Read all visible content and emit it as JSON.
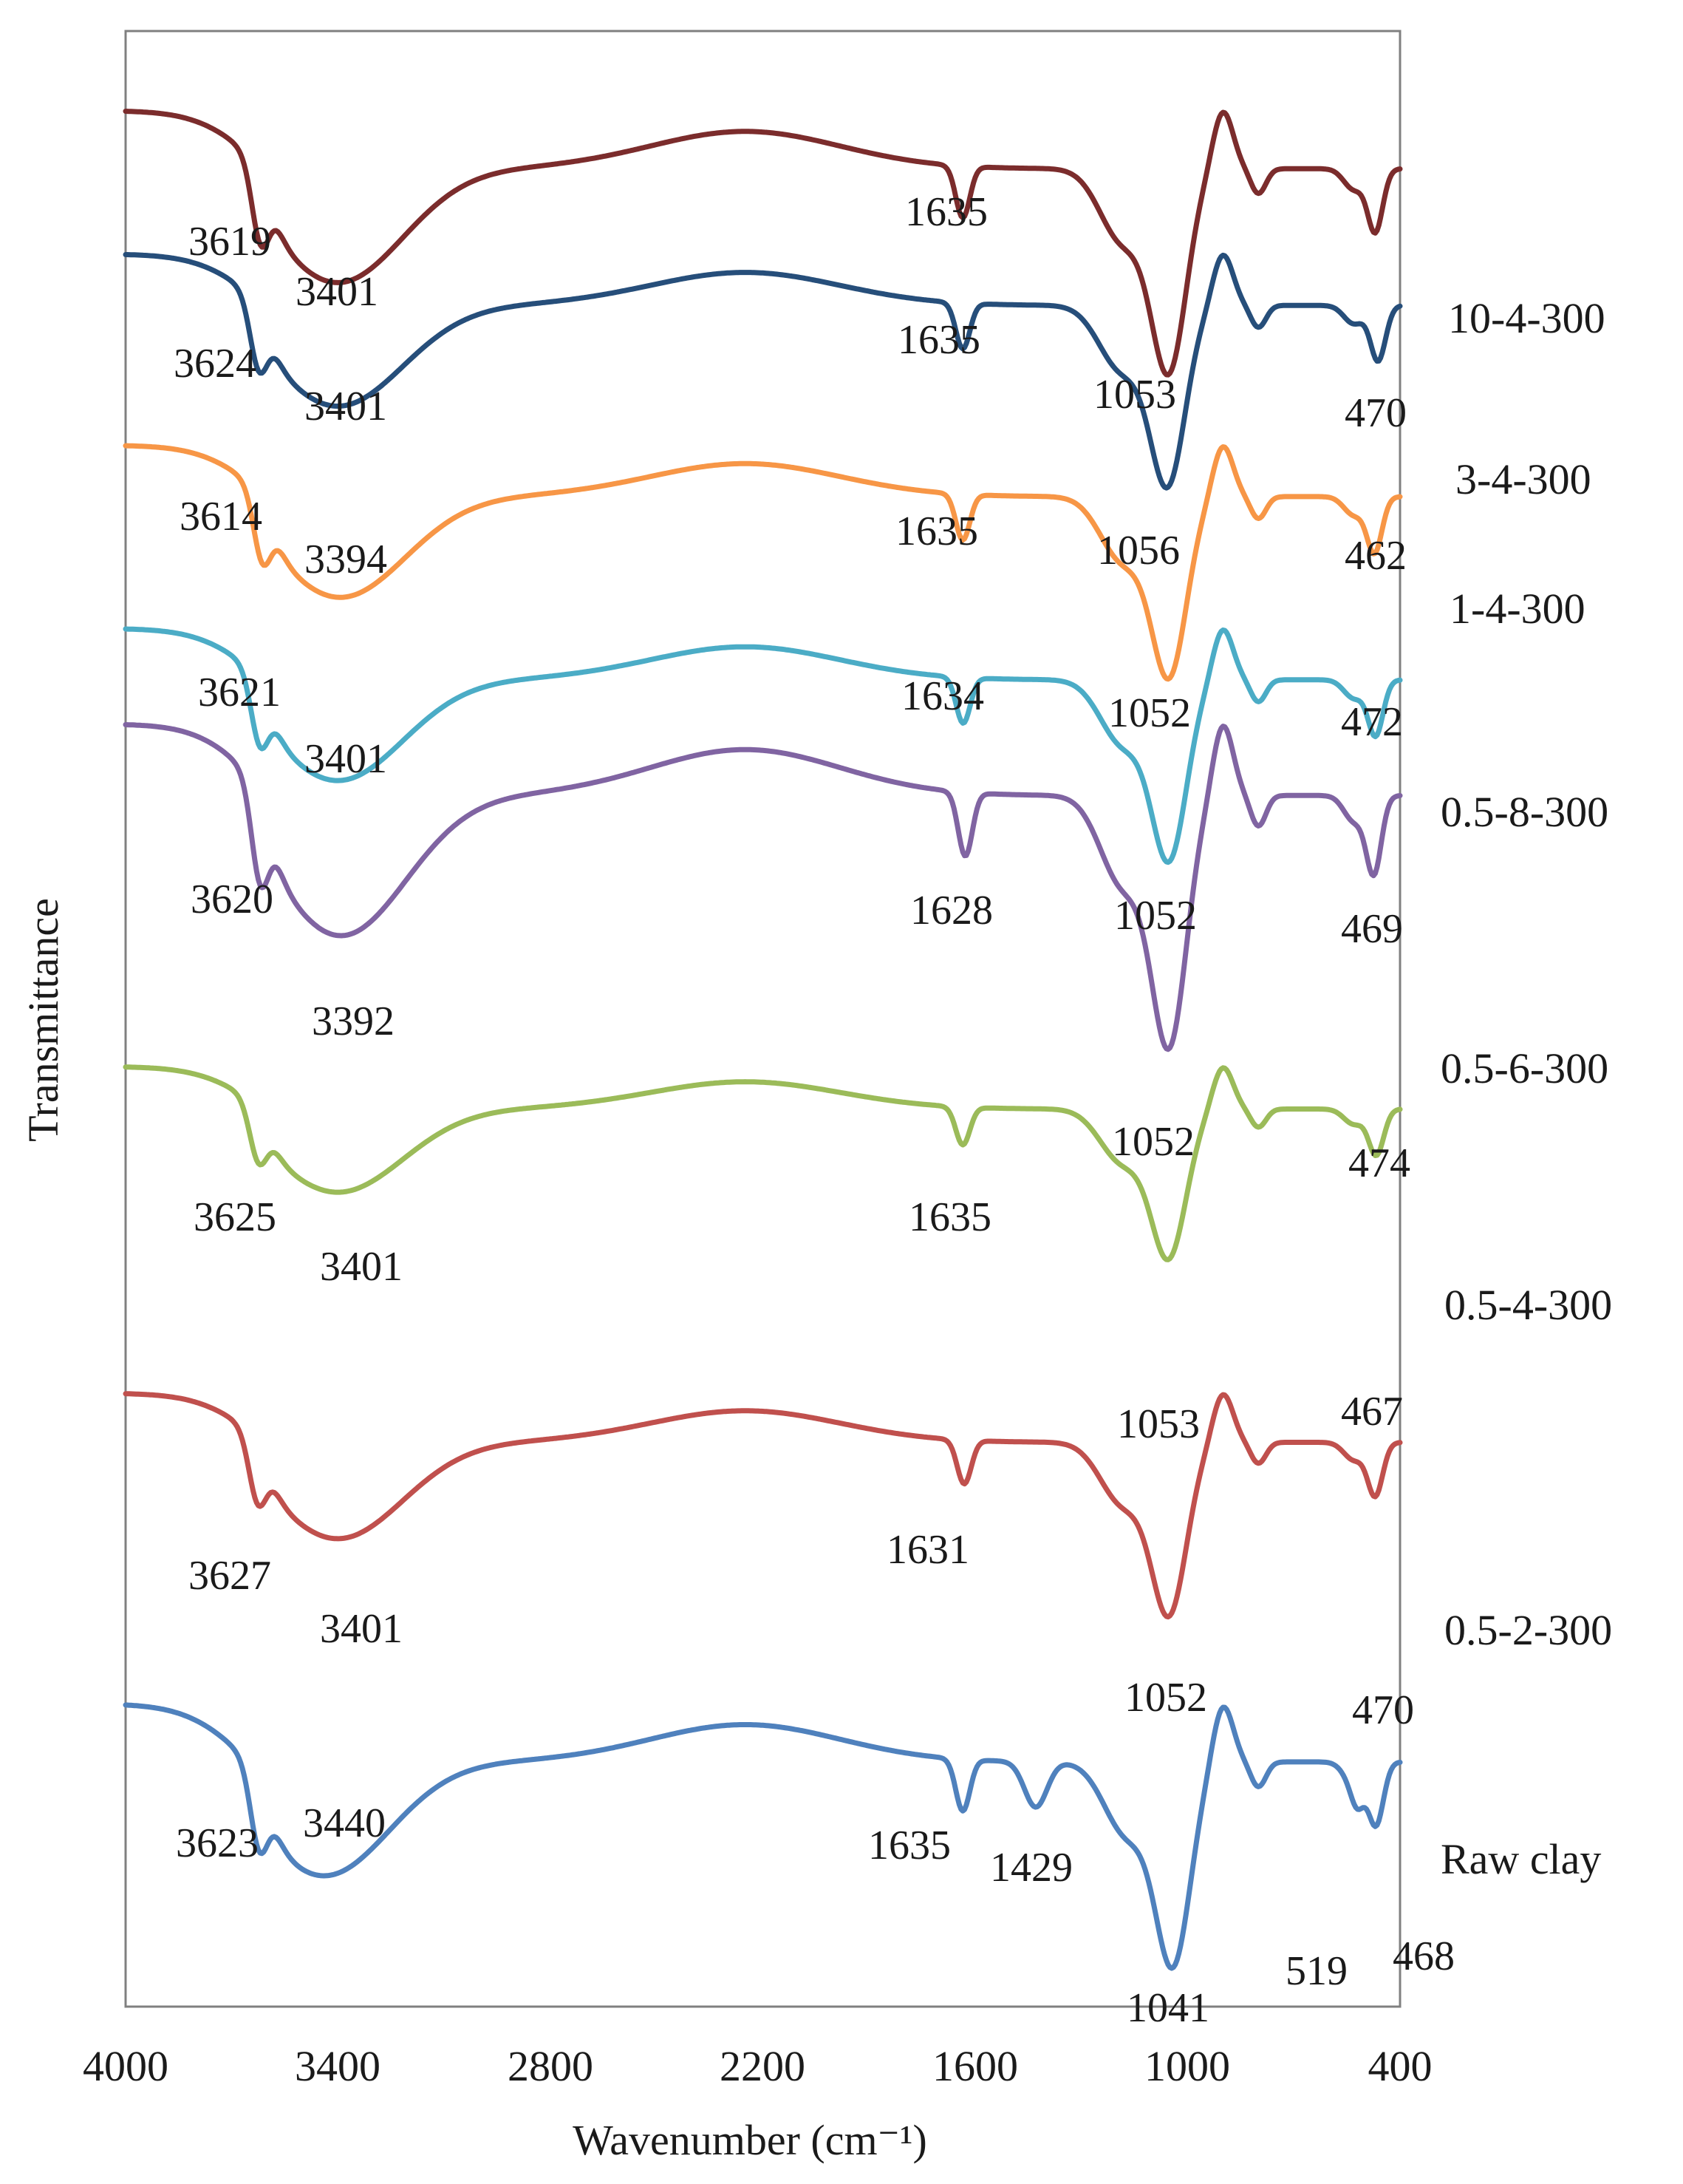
{
  "chart_data": {
    "type": "line",
    "title": "",
    "xlabel": "Wavenumber (cm⁻¹)",
    "ylabel": "Transmittance",
    "xlim": [
      4000,
      400
    ],
    "x_inverted": true,
    "x_ticks": [
      "4000",
      "3400",
      "2800",
      "2200",
      "1600",
      "1000",
      "400"
    ],
    "grid": false,
    "legend": "right, inline labels",
    "series": [
      {
        "name": "10-4-300",
        "color": "#7b2c2c",
        "baseline": 0.5,
        "scale": 1.3,
        "peaks": [
          "3619",
          "3401",
          "1635",
          "1053",
          "470"
        ]
      },
      {
        "name": "3-4-300",
        "color": "#264e7a",
        "baseline": 1.4,
        "scale": 1.15,
        "peaks": [
          "3624",
          "3401",
          "1635",
          "1056",
          "462"
        ]
      },
      {
        "name": "1-4-300",
        "color": "#f79646",
        "baseline": 2.6,
        "scale": 1.15,
        "peaks": [
          "3614",
          "3394",
          "1635",
          "1052",
          "472"
        ]
      },
      {
        "name": "0.5-8-300",
        "color": "#4bacc6",
        "baseline": 3.75,
        "scale": 1.15,
        "peaks": [
          "3621",
          "3401",
          "1634",
          "1052",
          "469"
        ]
      },
      {
        "name": "0.5-6-300",
        "color": "#8064a2",
        "baseline": 4.35,
        "scale": 1.6,
        "peaks": [
          "3620",
          "3392",
          "1628",
          "1052",
          "474"
        ]
      },
      {
        "name": "0.5-4-300",
        "color": "#9bbb59",
        "baseline": 6.5,
        "scale": 0.95,
        "peaks": [
          "3625",
          "3401",
          "1635",
          "1053",
          "467"
        ]
      },
      {
        "name": "0.5-2-300",
        "color": "#c0504d",
        "baseline": 8.55,
        "scale": 1.1,
        "peaks": [
          "3627",
          "3401",
          "1631",
          "1052",
          "470"
        ]
      },
      {
        "name": "Raw clay",
        "color": "#4f81bd",
        "baseline": 10.5,
        "scale": 1.3,
        "peaks": [
          "3623",
          "3440",
          "1635",
          "1429",
          "1041",
          "519",
          "468"
        ]
      }
    ]
  }
}
